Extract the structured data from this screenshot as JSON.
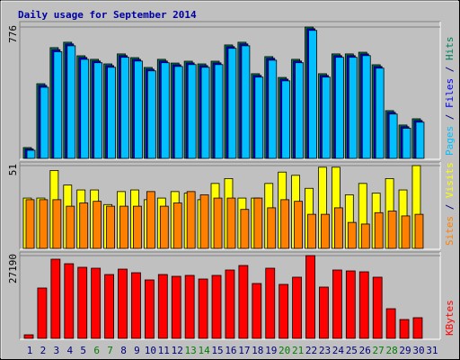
{
  "chart_data": [
    {
      "type": "bar",
      "title": "Daily usage for September 2014",
      "title_color": "#0000a0",
      "ylim": [
        0,
        776
      ],
      "yticks": [
        776
      ],
      "legend_separator": " / ",
      "series": [
        {
          "name": "Pages",
          "color": "#00c0ff",
          "values": [
            48,
            420,
            630,
            665,
            585,
            565,
            538,
            597,
            575,
            517,
            565,
            543,
            554,
            538,
            554,
            650,
            665,
            480,
            580,
            458,
            565,
            756,
            480,
            597,
            597,
            607,
            533,
            262,
            178,
            214,
            0
          ]
        },
        {
          "name": "Files",
          "color": "#0000ff",
          "values": [
            56,
            431,
            642,
            676,
            596,
            575,
            548,
            607,
            585,
            527,
            575,
            553,
            564,
            548,
            564,
            660,
            676,
            490,
            591,
            468,
            575,
            766,
            490,
            607,
            607,
            617,
            543,
            272,
            187,
            224,
            0
          ]
        },
        {
          "name": "Hits",
          "color": "#00805c",
          "values": [
            64,
            441,
            654,
            686,
            606,
            585,
            558,
            617,
            595,
            537,
            585,
            563,
            574,
            558,
            574,
            670,
            686,
            500,
            601,
            478,
            585,
            776,
            500,
            617,
            617,
            627,
            553,
            282,
            197,
            234,
            0
          ]
        }
      ]
    },
    {
      "type": "bar",
      "ylim": [
        0,
        51
      ],
      "yticks": [
        51
      ],
      "legend_separator": " / ",
      "series": [
        {
          "name": "Sites",
          "color": "#ff8000",
          "values": [
            30,
            30,
            30,
            26,
            28,
            29,
            26,
            26,
            26,
            35,
            26,
            28,
            35,
            33,
            31,
            31,
            24,
            31,
            25,
            30,
            29,
            21,
            21,
            25,
            16,
            15,
            22,
            23,
            20,
            21,
            0
          ]
        },
        {
          "name": "Visits",
          "color": "#ffff00",
          "values": [
            31,
            31,
            48,
            39,
            36,
            36,
            27,
            35,
            36,
            30,
            31,
            35,
            34,
            30,
            40,
            43,
            31,
            31,
            40,
            47,
            45,
            37,
            50,
            50,
            33,
            40,
            34,
            43,
            36,
            51,
            0
          ]
        }
      ]
    },
    {
      "type": "bar",
      "ylim": [
        0,
        27190
      ],
      "yticks": [
        27190
      ],
      "categories": [
        "1",
        "2",
        "3",
        "4",
        "5",
        "6",
        "7",
        "8",
        "9",
        "10",
        "11",
        "12",
        "13",
        "14",
        "15",
        "16",
        "17",
        "18",
        "19",
        "20",
        "21",
        "22",
        "23",
        "24",
        "25",
        "26",
        "27",
        "28",
        "29",
        "30",
        "31"
      ],
      "category_colors": [
        "#000080",
        "#000080",
        "#000080",
        "#000080",
        "#000080",
        "#007f00",
        "#007f00",
        "#000080",
        "#000080",
        "#000080",
        "#000080",
        "#000080",
        "#007f00",
        "#007f00",
        "#000080",
        "#000080",
        "#000080",
        "#000080",
        "#000080",
        "#007f00",
        "#007f00",
        "#000080",
        "#000080",
        "#000080",
        "#000080",
        "#000080",
        "#007f00",
        "#007f00",
        "#000080",
        "#000080",
        "#000080"
      ],
      "series": [
        {
          "name": "KBytes",
          "color": "#ff0000",
          "values": [
            1182,
            16550,
            26010,
            24530,
            23350,
            23050,
            20980,
            22750,
            21570,
            19210,
            20980,
            20390,
            20690,
            19500,
            20690,
            22460,
            23940,
            18030,
            23050,
            17730,
            20100,
            27190,
            16850,
            22460,
            22160,
            21870,
            20100,
            9750,
            6200,
            6800,
            0
          ]
        }
      ]
    }
  ]
}
